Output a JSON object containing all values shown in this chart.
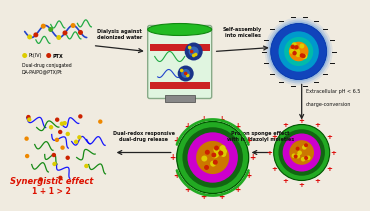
{
  "background_color": "#f0ebe0",
  "arrow_color": "#222222",
  "text_label1": "Dialysis against\ndeionized water",
  "text_label2": "Self-assembly\ninto micelles",
  "text_label3": "Extracellular pH < 6.5\n\ncharge-conversion",
  "text_label4": "Proton sponge effect\nwith imidazolyl moieties",
  "text_label5": "Dual-redox responsive\ndual-drug release",
  "text_synergistic": "Synergistic effect",
  "text_formula": "1 + 1 > 2",
  "text_ptiv": "Pt(IV)",
  "text_ptx": "PTX",
  "text_drug_label": "Dual-drug conjugated\nDA-PAIPO@PTX/Pt",
  "synergistic_color": "#dd1100",
  "yellow_bead": "#ddcc00",
  "red_bead": "#cc2200",
  "green_bead": "#44aa22",
  "orange_bead": "#ee8800",
  "chain_blue": "#2244cc",
  "chain_green": "#22aa44",
  "bag_body": "#e0f5e0",
  "bag_border": "#88aa88",
  "bag_top": "#22bb22",
  "bag_stripe": "#cc2222",
  "bag_clamp": "#888888",
  "micelle1_outer": "#2244bb",
  "micelle1_mid": "#1188cc",
  "micelle1_core": "#ee8800",
  "micelle_neg_color": "#111111",
  "micelle2_outer": "#22aa22",
  "micelle2_dark": "#116611",
  "micelle2_inner": "#cc00cc",
  "micelle2_core": "#cc7700",
  "micelle_plus_color": "#dd0000"
}
